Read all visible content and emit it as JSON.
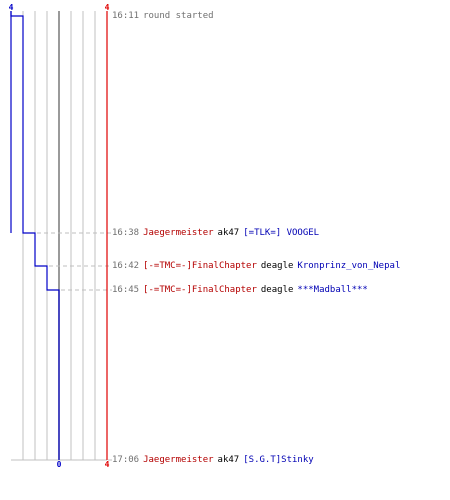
{
  "chart_data": {
    "type": "line",
    "title": "",
    "xlabel": "",
    "ylabel": "",
    "left_axis_count": 4,
    "right_axis_count": 4,
    "bottom_label": "0",
    "colors": {
      "blue_team": "#0000c8",
      "red_team": "#e00000",
      "grid": "#c0c0c0",
      "dashed": "#bfbfbf",
      "time": "#707070"
    },
    "series": [
      {
        "values": [
          4,
          3,
          2,
          1,
          0
        ]
      }
    ]
  },
  "events": [
    {
      "time": "16:11",
      "note": "round started",
      "kills_remaining_blue": 4
    },
    {
      "time": "16:38",
      "killer": "Jaegermeister",
      "weapon": "ak47",
      "victim": "[=TLK=] VOOGEL",
      "kills_remaining_blue": 3
    },
    {
      "time": "16:42",
      "killer": "[-=TMC=-]FinalChapter",
      "weapon": "deagle",
      "victim": "Kronprinz_von_Nepal",
      "kills_remaining_blue": 2
    },
    {
      "time": "16:45",
      "killer": "[-=TMC=-]FinalChapter",
      "weapon": "deagle",
      "victim": "***Madball***",
      "kills_remaining_blue": 1
    },
    {
      "time": "17:06",
      "killer": "Jaegermeister",
      "weapon": "ak47",
      "victim": "[S.G.T]Stinky",
      "kills_remaining_blue": 0
    }
  ]
}
